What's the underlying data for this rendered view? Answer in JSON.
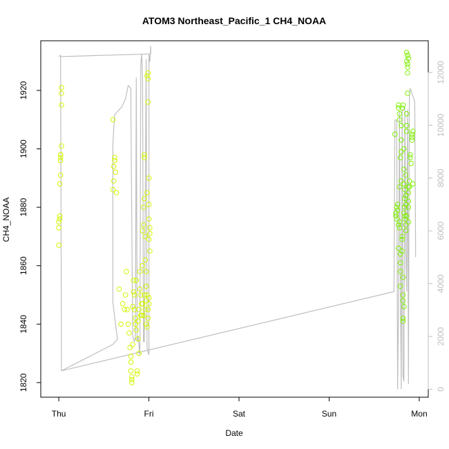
{
  "chart_data": {
    "type": "scatter",
    "title": "ATOM3 Northeast_Pacific_1 CH4_NOAA",
    "xlabel": "Date",
    "ylabel": "CH4_NOAA",
    "x_unit": "days since Thu 00:00",
    "x_ticks": [
      {
        "value": 0,
        "label": "Thu"
      },
      {
        "value": 1,
        "label": "Fri"
      },
      {
        "value": 2,
        "label": "Sat"
      },
      {
        "value": 3,
        "label": "Sun"
      },
      {
        "value": 4,
        "label": "Mon"
      }
    ],
    "xlim": [
      -0.2,
      4.1
    ],
    "ylim": [
      1815,
      1937
    ],
    "y_ticks": [
      1820,
      1840,
      1860,
      1880,
      1900,
      1920
    ],
    "y2lim": [
      -300,
      13200
    ],
    "y2_ticks": [
      0,
      2000,
      4000,
      6000,
      8000,
      10000,
      12000
    ],
    "colors": {
      "line": "#bebebe",
      "point_early": "#d4f500",
      "point_late": "#7ef000"
    },
    "points_thu": [
      [
        0.0,
        1867
      ],
      [
        0.0,
        1873
      ],
      [
        0.0,
        1875
      ],
      [
        0.01,
        1877
      ],
      [
        0.01,
        1876
      ],
      [
        0.01,
        1888
      ],
      [
        0.02,
        1891
      ],
      [
        0.02,
        1896
      ],
      [
        0.02,
        1897
      ],
      [
        0.02,
        1898
      ],
      [
        0.02,
        1898
      ],
      [
        0.03,
        1901
      ],
      [
        0.03,
        1915
      ],
      [
        0.03,
        1919
      ],
      [
        0.03,
        1921
      ]
    ],
    "points_fri": [
      [
        0.6,
        1910
      ],
      [
        0.6,
        1886
      ],
      [
        0.61,
        1889
      ],
      [
        0.61,
        1894
      ],
      [
        0.62,
        1896
      ],
      [
        0.62,
        1897
      ],
      [
        0.63,
        1892
      ],
      [
        0.64,
        1885
      ],
      [
        0.67,
        1852
      ],
      [
        0.69,
        1840
      ],
      [
        0.71,
        1847
      ],
      [
        0.73,
        1845
      ],
      [
        0.74,
        1850
      ],
      [
        0.75,
        1858
      ],
      [
        0.76,
        1845
      ],
      [
        0.77,
        1840
      ],
      [
        0.78,
        1837
      ],
      [
        0.79,
        1832
      ],
      [
        0.8,
        1829
      ],
      [
        0.8,
        1827
      ],
      [
        0.8,
        1824
      ],
      [
        0.81,
        1822
      ],
      [
        0.81,
        1820
      ],
      [
        0.81,
        1821
      ],
      [
        0.82,
        1833
      ],
      [
        0.82,
        1846
      ],
      [
        0.83,
        1851
      ],
      [
        0.83,
        1855
      ],
      [
        0.84,
        1850
      ],
      [
        0.84,
        1845
      ],
      [
        0.85,
        1842
      ],
      [
        0.85,
        1840
      ],
      [
        0.86,
        1855
      ],
      [
        0.86,
        1838
      ],
      [
        0.87,
        1823
      ],
      [
        0.87,
        1824
      ],
      [
        0.88,
        1841
      ],
      [
        0.88,
        1835
      ],
      [
        0.89,
        1830
      ],
      [
        0.89,
        1845
      ],
      [
        0.9,
        1852
      ],
      [
        0.9,
        1858
      ],
      [
        0.91,
        1850
      ],
      [
        0.91,
        1843
      ],
      [
        0.92,
        1847
      ],
      [
        0.93,
        1860
      ],
      [
        0.93,
        1872
      ],
      [
        0.94,
        1874
      ],
      [
        0.94,
        1880
      ],
      [
        0.95,
        1897
      ],
      [
        0.95,
        1898
      ],
      [
        0.95,
        1883
      ],
      [
        0.96,
        1870
      ],
      [
        0.96,
        1862
      ],
      [
        0.97,
        1858
      ],
      [
        0.97,
        1848
      ],
      [
        0.97,
        1840
      ],
      [
        0.98,
        1885
      ],
      [
        0.98,
        1925
      ],
      [
        0.99,
        1926
      ],
      [
        0.99,
        1924
      ],
      [
        0.99,
        1916
      ],
      [
        1.0,
        1890
      ],
      [
        1.0,
        1881
      ],
      [
        1.0,
        1876
      ],
      [
        1.0,
        1869
      ],
      [
        1.01,
        1871
      ],
      [
        1.01,
        1873
      ],
      [
        1.01,
        1865
      ],
      [
        1.0,
        1849
      ],
      [
        1.0,
        1847
      ],
      [
        0.99,
        1845
      ],
      [
        0.99,
        1842
      ],
      [
        0.98,
        1839
      ],
      [
        0.98,
        1850
      ],
      [
        0.97,
        1853
      ],
      [
        0.96,
        1845
      ],
      [
        0.95,
        1850
      ],
      [
        0.94,
        1843
      ],
      [
        0.93,
        1847
      ],
      [
        0.92,
        1843
      ]
    ],
    "points_mon": [
      [
        3.73,
        1905
      ],
      [
        3.74,
        1877
      ],
      [
        3.74,
        1878
      ],
      [
        3.75,
        1880
      ],
      [
        3.75,
        1876
      ],
      [
        3.76,
        1879
      ],
      [
        3.76,
        1881
      ],
      [
        3.77,
        1874
      ],
      [
        3.77,
        1866
      ],
      [
        3.78,
        1873
      ],
      [
        3.78,
        1875
      ],
      [
        3.78,
        1887
      ],
      [
        3.79,
        1861
      ],
      [
        3.79,
        1864
      ],
      [
        3.79,
        1858
      ],
      [
        3.79,
        1853
      ],
      [
        3.77,
        1915
      ],
      [
        3.77,
        1914
      ],
      [
        3.78,
        1912
      ],
      [
        3.78,
        1910
      ],
      [
        3.79,
        1897
      ],
      [
        3.8,
        1908
      ],
      [
        3.8,
        1903
      ],
      [
        3.8,
        1899
      ],
      [
        3.8,
        1889
      ],
      [
        3.81,
        1870
      ],
      [
        3.81,
        1865
      ],
      [
        3.81,
        1869
      ],
      [
        3.82,
        1856
      ],
      [
        3.82,
        1850
      ],
      [
        3.82,
        1848
      ],
      [
        3.82,
        1842
      ],
      [
        3.82,
        1841
      ],
      [
        3.83,
        1846
      ],
      [
        3.83,
        1900
      ],
      [
        3.83,
        1893
      ],
      [
        3.83,
        1888
      ],
      [
        3.84,
        1880
      ],
      [
        3.84,
        1886
      ],
      [
        3.84,
        1876
      ],
      [
        3.84,
        1877
      ],
      [
        3.85,
        1872
      ],
      [
        3.85,
        1881
      ],
      [
        3.85,
        1884
      ],
      [
        3.85,
        1891
      ],
      [
        3.86,
        1908
      ],
      [
        3.86,
        1912
      ],
      [
        3.86,
        1906
      ],
      [
        3.86,
        1933
      ],
      [
        3.86,
        1930
      ],
      [
        3.87,
        1929
      ],
      [
        3.87,
        1932
      ],
      [
        3.87,
        1919
      ],
      [
        3.87,
        1926
      ],
      [
        3.87,
        1928
      ],
      [
        3.87,
        1932
      ],
      [
        3.88,
        1931
      ],
      [
        3.88,
        1880
      ],
      [
        3.88,
        1882
      ],
      [
        3.88,
        1875
      ],
      [
        3.88,
        1885
      ],
      [
        3.88,
        1887
      ],
      [
        3.89,
        1889
      ],
      [
        3.89,
        1887
      ],
      [
        3.9,
        1898
      ],
      [
        3.9,
        1897
      ],
      [
        3.91,
        1895
      ],
      [
        3.92,
        1903
      ],
      [
        3.92,
        1905
      ],
      [
        3.92,
        1904
      ],
      [
        3.93,
        1906
      ],
      [
        3.93,
        1888
      ],
      [
        3.82,
        1915
      ],
      [
        3.81,
        1914
      ],
      [
        3.84,
        1883
      ],
      [
        3.85,
        1874
      ],
      [
        3.86,
        1877
      ],
      [
        3.83,
        1878
      ]
    ],
    "line_series": [
      [
        0.0,
        12600
      ],
      [
        0.02,
        12650
      ],
      [
        0.02,
        12600
      ],
      [
        0.03,
        700
      ],
      [
        0.6,
        1700
      ],
      [
        0.65,
        1900
      ],
      [
        0.6,
        3300
      ],
      [
        0.6,
        9300
      ],
      [
        0.62,
        10400
      ],
      [
        0.7,
        10700
      ],
      [
        0.74,
        11000
      ],
      [
        0.77,
        11500
      ],
      [
        0.8,
        11400
      ],
      [
        0.8,
        10600
      ],
      [
        0.82,
        2000
      ],
      [
        0.84,
        1800
      ],
      [
        0.85,
        2000
      ],
      [
        0.86,
        11800
      ],
      [
        0.87,
        1800
      ],
      [
        0.88,
        2000
      ],
      [
        0.9,
        1300
      ],
      [
        0.91,
        12300
      ],
      [
        0.92,
        12700
      ],
      [
        0.93,
        11800
      ],
      [
        0.94,
        1800
      ],
      [
        0.95,
        1800
      ],
      [
        0.97,
        12500
      ],
      [
        0.98,
        1600
      ],
      [
        0.99,
        1400
      ],
      [
        1.0,
        1300
      ],
      [
        1.0,
        12700
      ],
      [
        1.01,
        12400
      ],
      [
        1.02,
        13000
      ],
      [
        1.02,
        12700
      ],
      [
        0.02,
        12600
      ],
      [
        0.03,
        700
      ],
      [
        3.72,
        3700
      ],
      [
        3.73,
        10200
      ],
      [
        3.75,
        10200
      ],
      [
        3.76,
        0
      ],
      [
        3.77,
        3000
      ],
      [
        3.78,
        10500
      ],
      [
        3.79,
        4000
      ],
      [
        3.8,
        0
      ],
      [
        3.81,
        10600
      ],
      [
        3.82,
        500
      ],
      [
        3.83,
        300
      ],
      [
        3.84,
        10700
      ],
      [
        3.85,
        5300
      ],
      [
        3.86,
        3700
      ],
      [
        3.87,
        10600
      ],
      [
        3.88,
        200
      ],
      [
        3.89,
        11000
      ],
      [
        3.9,
        11400
      ],
      [
        3.92,
        11200
      ],
      [
        3.95,
        10900
      ],
      [
        3.96,
        5000
      ]
    ]
  }
}
